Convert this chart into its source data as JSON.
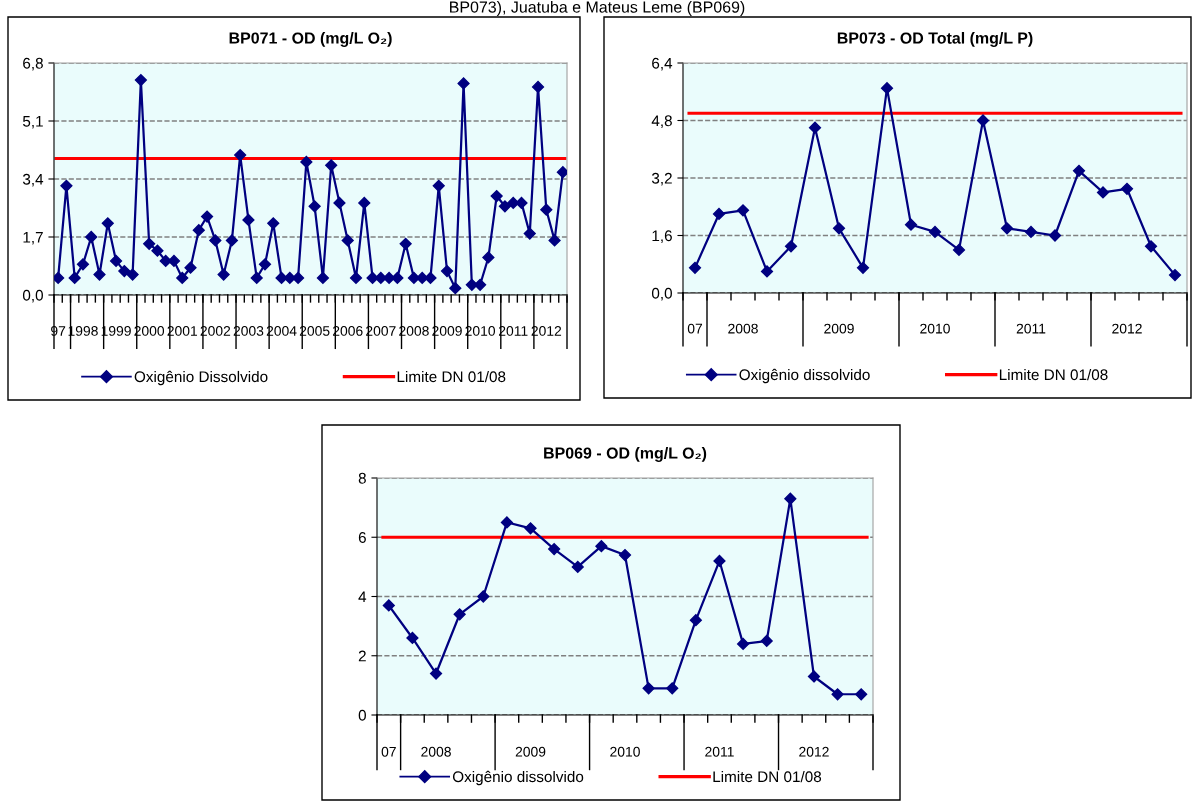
{
  "chart_data": [
    {
      "type": "line",
      "title": "BP071 - OD (mg/L O₂)",
      "annotations": [
        "BP073), Juatuba e Mateus Leme (BP069)"
      ],
      "categories": [
        "97",
        null,
        null,
        "1998",
        null,
        null,
        null,
        "1999",
        null,
        null,
        null,
        "2000",
        null,
        null,
        null,
        "2001",
        null,
        null,
        null,
        "2002",
        null,
        null,
        null,
        "2003",
        null,
        null,
        null,
        "2004",
        null,
        null,
        null,
        "2005",
        null,
        null,
        null,
        "2006",
        null,
        null,
        null,
        "2007",
        null,
        null,
        null,
        "2008",
        null,
        null,
        null,
        "2009",
        null,
        null,
        null,
        "2010",
        null,
        null,
        null,
        "2011",
        null,
        null,
        null,
        "2012",
        null,
        null
      ],
      "series": [
        {
          "name": "Oxigênio Dissolvido",
          "color": "#000080",
          "values": [
            0.5,
            3.2,
            0.5,
            0.9,
            1.7,
            0.6,
            2.1,
            1.0,
            0.7,
            0.6,
            6.3,
            1.5,
            1.3,
            1.0,
            1.0,
            0.5,
            0.8,
            1.9,
            2.3,
            1.6,
            0.6,
            1.6,
            4.1,
            2.2,
            0.5,
            0.9,
            2.1,
            0.5,
            0.5,
            0.5,
            3.9,
            2.6,
            0.5,
            3.8,
            2.7,
            1.6,
            0.5,
            2.7,
            0.5,
            0.5,
            0.5,
            0.5,
            1.5,
            0.5,
            0.5,
            0.5,
            3.2,
            0.7,
            0.2,
            6.2,
            0.3,
            0.3,
            1.1,
            2.9,
            2.6,
            2.7,
            2.7,
            1.8,
            6.1,
            2.5,
            1.6,
            3.6
          ]
        }
      ],
      "ref_lines": [
        {
          "axis": "y",
          "value": 4.0,
          "label": "Limite DN 01/08",
          "color": "#ff0000"
        }
      ],
      "ylim": [
        0,
        6.8
      ],
      "yticks": [
        {
          "value": 0,
          "label": "0,0"
        },
        {
          "value": 1.7,
          "label": "1,7"
        },
        {
          "value": 3.4,
          "label": "3,4"
        },
        {
          "value": 5.1,
          "label": "5,1"
        },
        {
          "value": 6.8,
          "label": "6,8"
        }
      ],
      "grid": "y",
      "legend": "bottom",
      "marker": "diamond",
      "line_style": "solid"
    },
    {
      "type": "line",
      "title": "BP073 - OD Total (mg/L P)",
      "categories": [
        "07",
        null,
        "2008",
        null,
        null,
        null,
        "2009",
        null,
        null,
        null,
        "2010",
        null,
        null,
        null,
        "2011",
        null,
        null,
        null,
        "2012",
        null,
        null
      ],
      "series": [
        {
          "name": "Oxigênio dissolvido",
          "color": "#000080",
          "values": [
            0.7,
            2.2,
            2.3,
            0.6,
            1.3,
            4.6,
            1.8,
            0.7,
            5.7,
            1.9,
            1.7,
            1.2,
            4.8,
            1.8,
            1.7,
            1.6,
            3.4,
            2.8,
            2.9,
            1.3,
            0.5
          ]
        }
      ],
      "ref_lines": [
        {
          "axis": "y",
          "value": 5.0,
          "label": "Limite DN 01/08",
          "color": "#ff0000"
        }
      ],
      "ylim": [
        0,
        6.4
      ],
      "yticks": [
        {
          "value": 0,
          "label": "0,0"
        },
        {
          "value": 1.6,
          "label": "1,6"
        },
        {
          "value": 3.2,
          "label": "3,2"
        },
        {
          "value": 4.8,
          "label": "4,8"
        },
        {
          "value": 6.4,
          "label": "6,4"
        }
      ],
      "grid": "y",
      "legend": "bottom",
      "marker": "diamond",
      "line_style": "solid"
    },
    {
      "type": "line",
      "title": "BP069 - OD (mg/L O₂)",
      "categories": [
        "07",
        null,
        "2008",
        null,
        null,
        null,
        "2009",
        null,
        null,
        null,
        "2010",
        null,
        null,
        null,
        "2011",
        null,
        null,
        null,
        "2012",
        null,
        null
      ],
      "series": [
        {
          "name": "Oxigênio dissolvido",
          "color": "#000080",
          "values": [
            3.7,
            2.6,
            1.4,
            3.4,
            4.0,
            6.5,
            6.3,
            5.6,
            5.0,
            5.7,
            5.4,
            0.9,
            0.9,
            3.2,
            5.2,
            2.4,
            2.5,
            7.3,
            1.3,
            0.7,
            0.7
          ]
        }
      ],
      "ref_lines": [
        {
          "axis": "y",
          "value": 6,
          "label": "Limite DN 01/08",
          "color": "#ff0000"
        }
      ],
      "ylim": [
        0,
        8
      ],
      "yticks": [
        0,
        2,
        4,
        6,
        8
      ],
      "grid": "y",
      "legend": "bottom",
      "marker": "diamond",
      "line_style": "solid"
    }
  ]
}
